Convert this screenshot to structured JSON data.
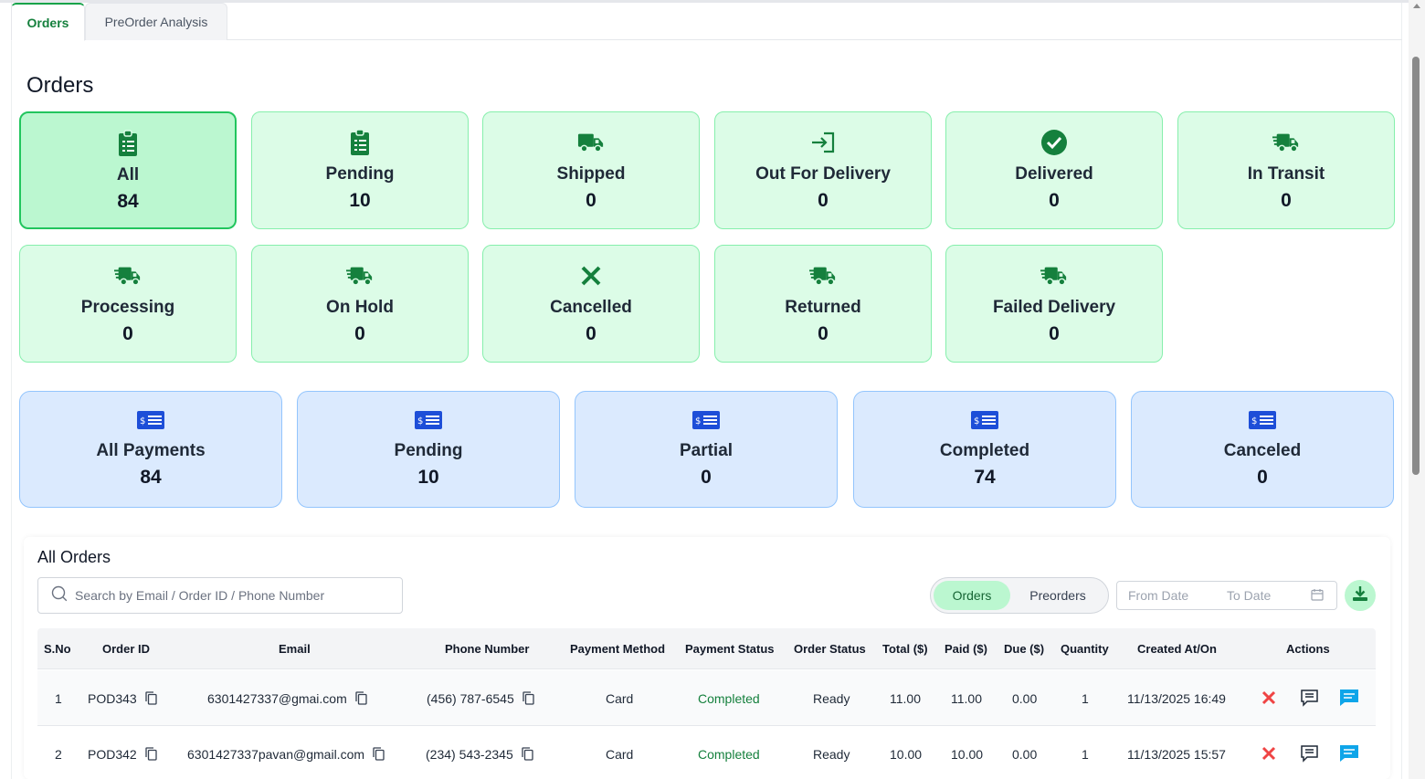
{
  "tabs": [
    "Orders",
    "PreOrder Analysis"
  ],
  "page_title": "Orders",
  "order_status_cards": [
    {
      "label": "All",
      "count": "84",
      "icon": "clipboard-list-icon",
      "selected": true
    },
    {
      "label": "Pending",
      "count": "10",
      "icon": "clipboard-list-icon"
    },
    {
      "label": "Shipped",
      "count": "0",
      "icon": "truck-icon"
    },
    {
      "label": "Out For Delivery",
      "count": "0",
      "icon": "sign-in-arrow-icon"
    },
    {
      "label": "Delivered",
      "count": "0",
      "icon": "check-circle-icon"
    },
    {
      "label": "In Transit",
      "count": "0",
      "icon": "truck-fast-icon"
    },
    {
      "label": "Processing",
      "count": "0",
      "icon": "truck-fast-icon"
    },
    {
      "label": "On Hold",
      "count": "0",
      "icon": "truck-fast-icon"
    },
    {
      "label": "Cancelled",
      "count": "0",
      "icon": "x-mark-icon"
    },
    {
      "label": "Returned",
      "count": "0",
      "icon": "truck-fast-icon"
    },
    {
      "label": "Failed Delivery",
      "count": "0",
      "icon": "truck-fast-icon"
    }
  ],
  "payment_cards": [
    {
      "label": "All Payments",
      "count": "84",
      "icon": "payment-check-icon"
    },
    {
      "label": "Pending",
      "count": "10",
      "icon": "payment-check-icon"
    },
    {
      "label": "Partial",
      "count": "0",
      "icon": "payment-check-icon"
    },
    {
      "label": "Completed",
      "count": "74",
      "icon": "payment-check-icon"
    },
    {
      "label": "Canceled",
      "count": "0",
      "icon": "payment-check-icon"
    }
  ],
  "orders_panel": {
    "title": "All Orders",
    "search_placeholder": "Search by Email / Order ID / Phone Number",
    "toggle": [
      "Orders",
      "Preorders"
    ],
    "from_date_placeholder": "From Date",
    "to_date_placeholder": "To Date"
  },
  "table": {
    "columns": [
      "S.No",
      "Order ID",
      "Email",
      "Phone Number",
      "Payment Method",
      "Payment Status",
      "Order Status",
      "Total ($)",
      "Paid ($)",
      "Due ($)",
      "Quantity",
      "Created At/On",
      "Actions"
    ],
    "rows": [
      {
        "sno": "1",
        "order_id": "POD343",
        "email": "6301427337@gmai.com",
        "phone": "(456) 787-6545",
        "payment_method": "Card",
        "payment_status": "Completed",
        "order_status": "Ready",
        "total": "11.00",
        "paid": "11.00",
        "due": "0.00",
        "quantity": "1",
        "created": "11/13/2025 16:49"
      },
      {
        "sno": "2",
        "order_id": "POD342",
        "email": "6301427337pavan@gmail.com",
        "phone": "(234) 543-2345",
        "payment_method": "Card",
        "payment_status": "Completed",
        "order_status": "Ready",
        "total": "10.00",
        "paid": "10.00",
        "due": "0.00",
        "quantity": "1",
        "created": "11/13/2025 15:57"
      }
    ]
  },
  "colors": {
    "accent_green": "#15803d",
    "card_green": "#dcfce7",
    "card_blue": "#dbeafe",
    "icon_blue": "#1d4ed8",
    "cancel_red": "#ef4444",
    "chat_blue": "#0ea5e9"
  }
}
